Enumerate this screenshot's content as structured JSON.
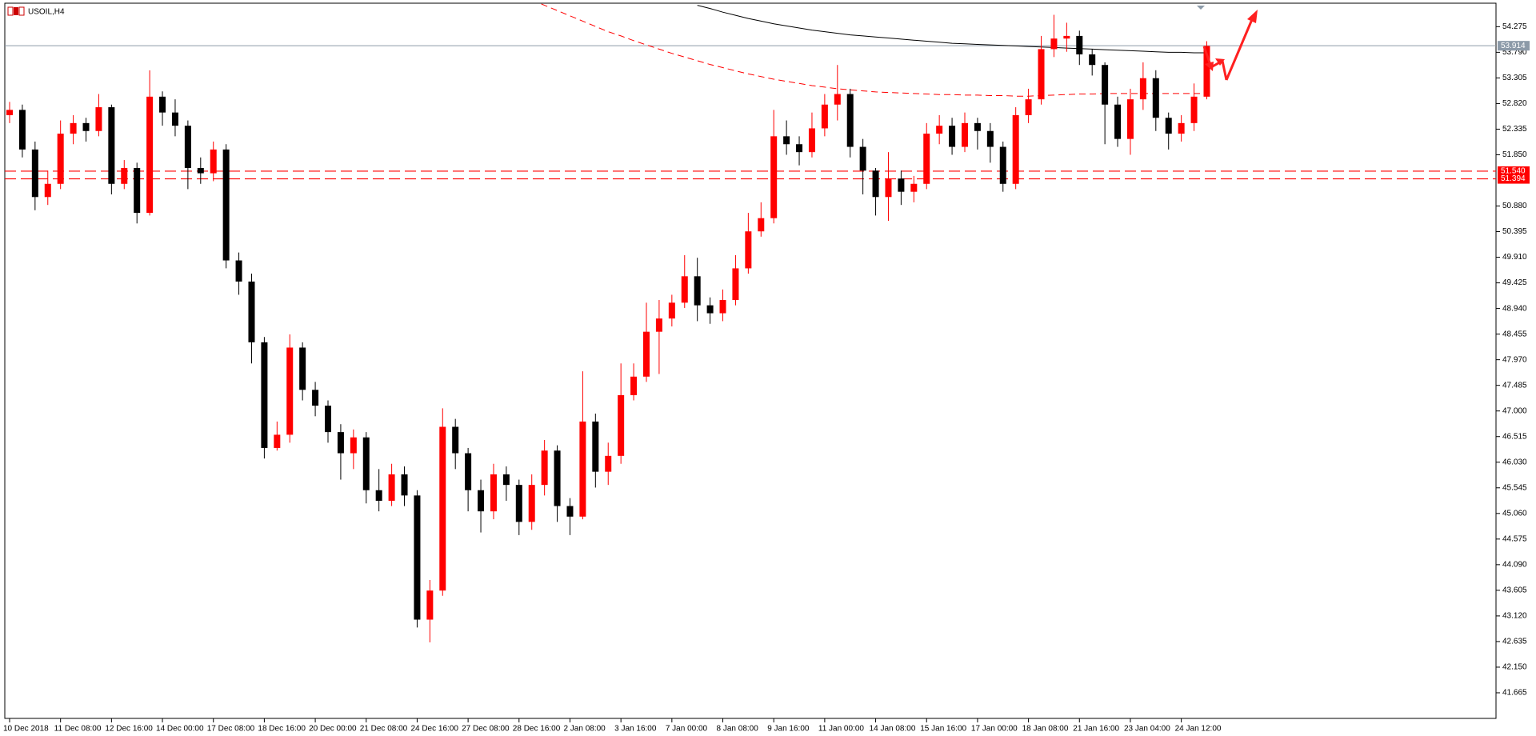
{
  "chart_data": {
    "type": "candlestick",
    "title": "USOIL,H4",
    "categories": [
      "10 Dec 2018",
      null,
      null,
      null,
      "11 Dec 08:00",
      null,
      null,
      null,
      "12 Dec 16:00",
      null,
      null,
      null,
      "14 Dec 00:00",
      null,
      null,
      null,
      "17 Dec 08:00",
      null,
      null,
      null,
      "18 Dec 16:00",
      null,
      null,
      null,
      "20 Dec 00:00",
      null,
      null,
      null,
      "21 Dec 08:00",
      null,
      null,
      null,
      "24 Dec 16:00",
      null,
      null,
      null,
      "27 Dec 08:00",
      null,
      null,
      null,
      "28 Dec 16:00",
      null,
      null,
      null,
      "2 Jan 08:00",
      null,
      null,
      null,
      "3 Jan 16:00",
      null,
      null,
      null,
      "7 Jan 00:00",
      null,
      null,
      null,
      "8 Jan 08:00",
      null,
      null,
      null,
      "9 Jan 16:00",
      null,
      null,
      null,
      "11 Jan 00:00",
      null,
      null,
      null,
      "14 Jan 08:00",
      null,
      null,
      null,
      "15 Jan 16:00",
      null,
      null,
      null,
      "17 Jan 00:00",
      null,
      null,
      null,
      "18 Jan 08:00",
      null,
      null,
      null,
      "21 Jan 16:00",
      null,
      null,
      null,
      "23 Jan 04:00",
      null,
      null,
      null,
      "24 Jan 12:00",
      null,
      null
    ],
    "open": [
      52.6,
      52.7,
      51.95,
      51.05,
      51.3,
      52.25,
      52.45,
      52.3,
      52.75,
      51.3,
      51.6,
      50.75,
      52.95,
      52.65,
      52.4,
      51.6,
      51.5,
      51.95,
      49.85,
      49.45,
      48.3,
      46.3,
      46.55,
      48.2,
      47.4,
      47.1,
      46.6,
      46.2,
      46.5,
      45.5,
      45.3,
      45.8,
      45.4,
      43.05,
      43.6,
      46.7,
      46.2,
      45.5,
      45.1,
      45.8,
      45.6,
      44.9,
      45.6,
      46.25,
      45.2,
      45.0,
      46.8,
      45.85,
      46.15,
      47.3,
      47.65,
      48.5,
      48.75,
      49.05,
      49.55,
      49.0,
      48.85,
      49.1,
      49.7,
      50.4,
      50.65,
      52.2,
      52.05,
      51.9,
      52.35,
      52.8,
      53.0,
      52.0,
      51.55,
      51.05,
      51.4,
      51.15,
      51.3,
      52.25,
      52.4,
      52.0,
      52.45,
      52.3,
      52.0,
      51.3,
      52.6,
      52.9,
      53.85,
      54.05,
      54.1,
      53.75,
      53.55,
      52.8,
      52.15,
      52.9,
      53.3,
      52.55,
      52.25,
      52.45,
      52.95
    ],
    "high": [
      52.85,
      52.8,
      52.1,
      51.55,
      52.5,
      52.6,
      52.55,
      53.0,
      52.8,
      51.75,
      51.7,
      53.45,
      53.05,
      52.9,
      52.5,
      51.8,
      52.1,
      52.05,
      50.0,
      49.6,
      48.4,
      46.8,
      48.45,
      48.3,
      47.55,
      47.2,
      46.75,
      46.65,
      46.6,
      45.9,
      46.0,
      45.95,
      45.5,
      43.8,
      47.05,
      46.85,
      46.3,
      45.7,
      46.0,
      45.95,
      45.7,
      45.8,
      46.45,
      46.35,
      45.35,
      47.75,
      46.95,
      46.4,
      47.9,
      47.9,
      49.05,
      49.1,
      49.2,
      49.95,
      49.9,
      49.15,
      49.3,
      49.95,
      50.75,
      50.95,
      52.7,
      52.5,
      52.2,
      52.65,
      53.0,
      53.55,
      53.1,
      52.15,
      51.6,
      51.9,
      51.55,
      51.45,
      52.45,
      52.6,
      52.55,
      52.65,
      52.55,
      52.45,
      52.1,
      52.75,
      53.1,
      54.1,
      54.5,
      54.35,
      54.2,
      53.85,
      53.6,
      52.95,
      53.1,
      53.6,
      53.45,
      52.65,
      52.6,
      53.2,
      54.0
    ],
    "low": [
      52.45,
      51.8,
      50.8,
      50.9,
      51.2,
      52.05,
      52.1,
      52.2,
      51.1,
      51.2,
      50.55,
      50.7,
      52.4,
      52.2,
      51.2,
      51.3,
      51.35,
      49.7,
      49.2,
      47.9,
      46.1,
      46.25,
      46.4,
      47.2,
      46.9,
      46.4,
      45.7,
      45.9,
      45.25,
      45.1,
      45.2,
      45.2,
      42.9,
      42.62,
      43.5,
      45.9,
      45.1,
      44.7,
      44.95,
      45.3,
      44.65,
      44.75,
      45.4,
      44.9,
      44.65,
      44.95,
      45.55,
      45.6,
      46.0,
      47.2,
      47.55,
      47.7,
      48.6,
      48.95,
      48.7,
      48.65,
      48.7,
      49.0,
      49.6,
      50.3,
      50.55,
      51.85,
      51.65,
      51.8,
      52.2,
      52.5,
      51.8,
      51.1,
      50.7,
      50.6,
      50.9,
      50.95,
      51.2,
      52.05,
      51.85,
      51.9,
      51.95,
      51.7,
      51.15,
      51.2,
      52.45,
      52.8,
      53.7,
      53.8,
      53.55,
      53.35,
      52.05,
      52.0,
      51.85,
      52.7,
      52.3,
      51.95,
      52.1,
      52.3,
      52.9
    ],
    "close": [
      52.7,
      51.95,
      51.05,
      51.3,
      52.25,
      52.45,
      52.3,
      52.75,
      51.3,
      51.6,
      50.75,
      52.95,
      52.65,
      52.4,
      51.6,
      51.5,
      51.95,
      49.85,
      49.45,
      48.3,
      46.3,
      46.55,
      48.2,
      47.4,
      47.1,
      46.6,
      46.2,
      46.5,
      45.5,
      45.3,
      45.8,
      45.4,
      43.05,
      43.6,
      46.7,
      46.2,
      45.5,
      45.1,
      45.8,
      45.6,
      44.9,
      45.6,
      46.25,
      45.2,
      45.0,
      46.8,
      45.85,
      46.15,
      47.3,
      47.65,
      48.5,
      48.75,
      49.05,
      49.55,
      49.0,
      48.85,
      49.1,
      49.7,
      50.4,
      50.65,
      52.2,
      52.05,
      51.9,
      52.35,
      52.8,
      53.0,
      52.0,
      51.55,
      51.05,
      51.4,
      51.15,
      51.3,
      52.25,
      52.4,
      52.0,
      52.45,
      52.3,
      52.0,
      51.3,
      52.6,
      52.9,
      53.85,
      54.05,
      54.1,
      53.75,
      53.55,
      52.8,
      52.15,
      52.9,
      53.3,
      52.55,
      52.25,
      52.45,
      52.95,
      53.91
    ],
    "up_color": "#ff0000",
    "down_color": "#000000",
    "overlays": [
      {
        "color": "#000000",
        "dash": false,
        "values": [
          null,
          null,
          null,
          null,
          null,
          null,
          null,
          null,
          null,
          null,
          null,
          null,
          null,
          null,
          null,
          null,
          null,
          null,
          null,
          null,
          null,
          null,
          null,
          null,
          null,
          null,
          null,
          null,
          null,
          null,
          null,
          null,
          null,
          null,
          null,
          null,
          null,
          null,
          null,
          null,
          null,
          null,
          null,
          null,
          null,
          null,
          null,
          null,
          null,
          null,
          null,
          null,
          null,
          null,
          54.68,
          54.62,
          54.55,
          54.49,
          54.43,
          54.38,
          54.33,
          54.29,
          54.25,
          54.21,
          54.18,
          54.15,
          54.12,
          54.1,
          54.08,
          54.06,
          54.04,
          54.02,
          54.0,
          53.98,
          53.96,
          53.95,
          53.94,
          53.93,
          53.92,
          53.91,
          53.9,
          53.89,
          53.88,
          53.87,
          53.86,
          53.85,
          53.84,
          53.83,
          53.82,
          53.81,
          53.8,
          53.79,
          53.79,
          53.78,
          53.78
        ]
      },
      {
        "color": "#ff0000",
        "dash": true,
        "values": [
          null,
          null,
          null,
          null,
          null,
          null,
          null,
          null,
          null,
          null,
          null,
          null,
          null,
          null,
          null,
          null,
          null,
          null,
          null,
          null,
          null,
          null,
          null,
          null,
          null,
          null,
          null,
          null,
          null,
          null,
          null,
          null,
          null,
          null,
          null,
          null,
          null,
          null,
          null,
          null,
          null,
          54.78,
          54.68,
          54.58,
          54.48,
          54.38,
          54.28,
          54.18,
          54.1,
          54.01,
          53.93,
          53.85,
          53.77,
          53.7,
          53.63,
          53.56,
          53.5,
          53.44,
          53.38,
          53.33,
          53.28,
          53.24,
          53.2,
          53.16,
          53.13,
          53.1,
          53.08,
          53.06,
          53.04,
          53.03,
          53.02,
          53.01,
          53.0,
          52.99,
          52.99,
          52.98,
          52.98,
          52.97,
          52.97,
          52.96,
          52.96,
          52.97,
          52.98,
          52.99,
          53.0,
          53.0,
          53.01,
          53.01,
          53.01,
          53.01,
          53.01,
          53.01,
          53.01,
          53.01,
          53.01
        ]
      }
    ],
    "levels": [
      {
        "value": 51.54,
        "label": "51.540"
      },
      {
        "value": 51.394,
        "label": "51.394"
      }
    ],
    "level_color": "#ff0000",
    "price_line": 53.914,
    "price_line_color": "#8c9aa8",
    "ylim": [
      41.18,
      54.78
    ],
    "yticks": [
      54.275,
      {
        "value": 53.79,
        "label": "53.790"
      },
      53.305,
      {
        "value": 52.82,
        "label": "52.820"
      },
      52.335,
      {
        "value": 51.85,
        "label": "51.850"
      },
      {
        "value": 50.88,
        "label": "50.880"
      },
      50.395,
      {
        "value": 49.91,
        "label": "49.910"
      },
      49.425,
      {
        "value": 48.94,
        "label": "48.940"
      },
      48.455,
      {
        "value": 47.97,
        "label": "47.970"
      },
      47.485,
      {
        "value": 47,
        "label": "47.000"
      },
      46.515,
      {
        "value": 46.03,
        "label": "46.030"
      },
      45.545,
      {
        "value": 45.06,
        "label": "45.060"
      },
      44.575,
      {
        "value": 44.09,
        "label": "44.090"
      },
      43.605,
      {
        "value": 43.12,
        "label": "43.120"
      },
      42.635,
      {
        "value": 42.15,
        "label": "42.150"
      },
      41.665
    ]
  }
}
